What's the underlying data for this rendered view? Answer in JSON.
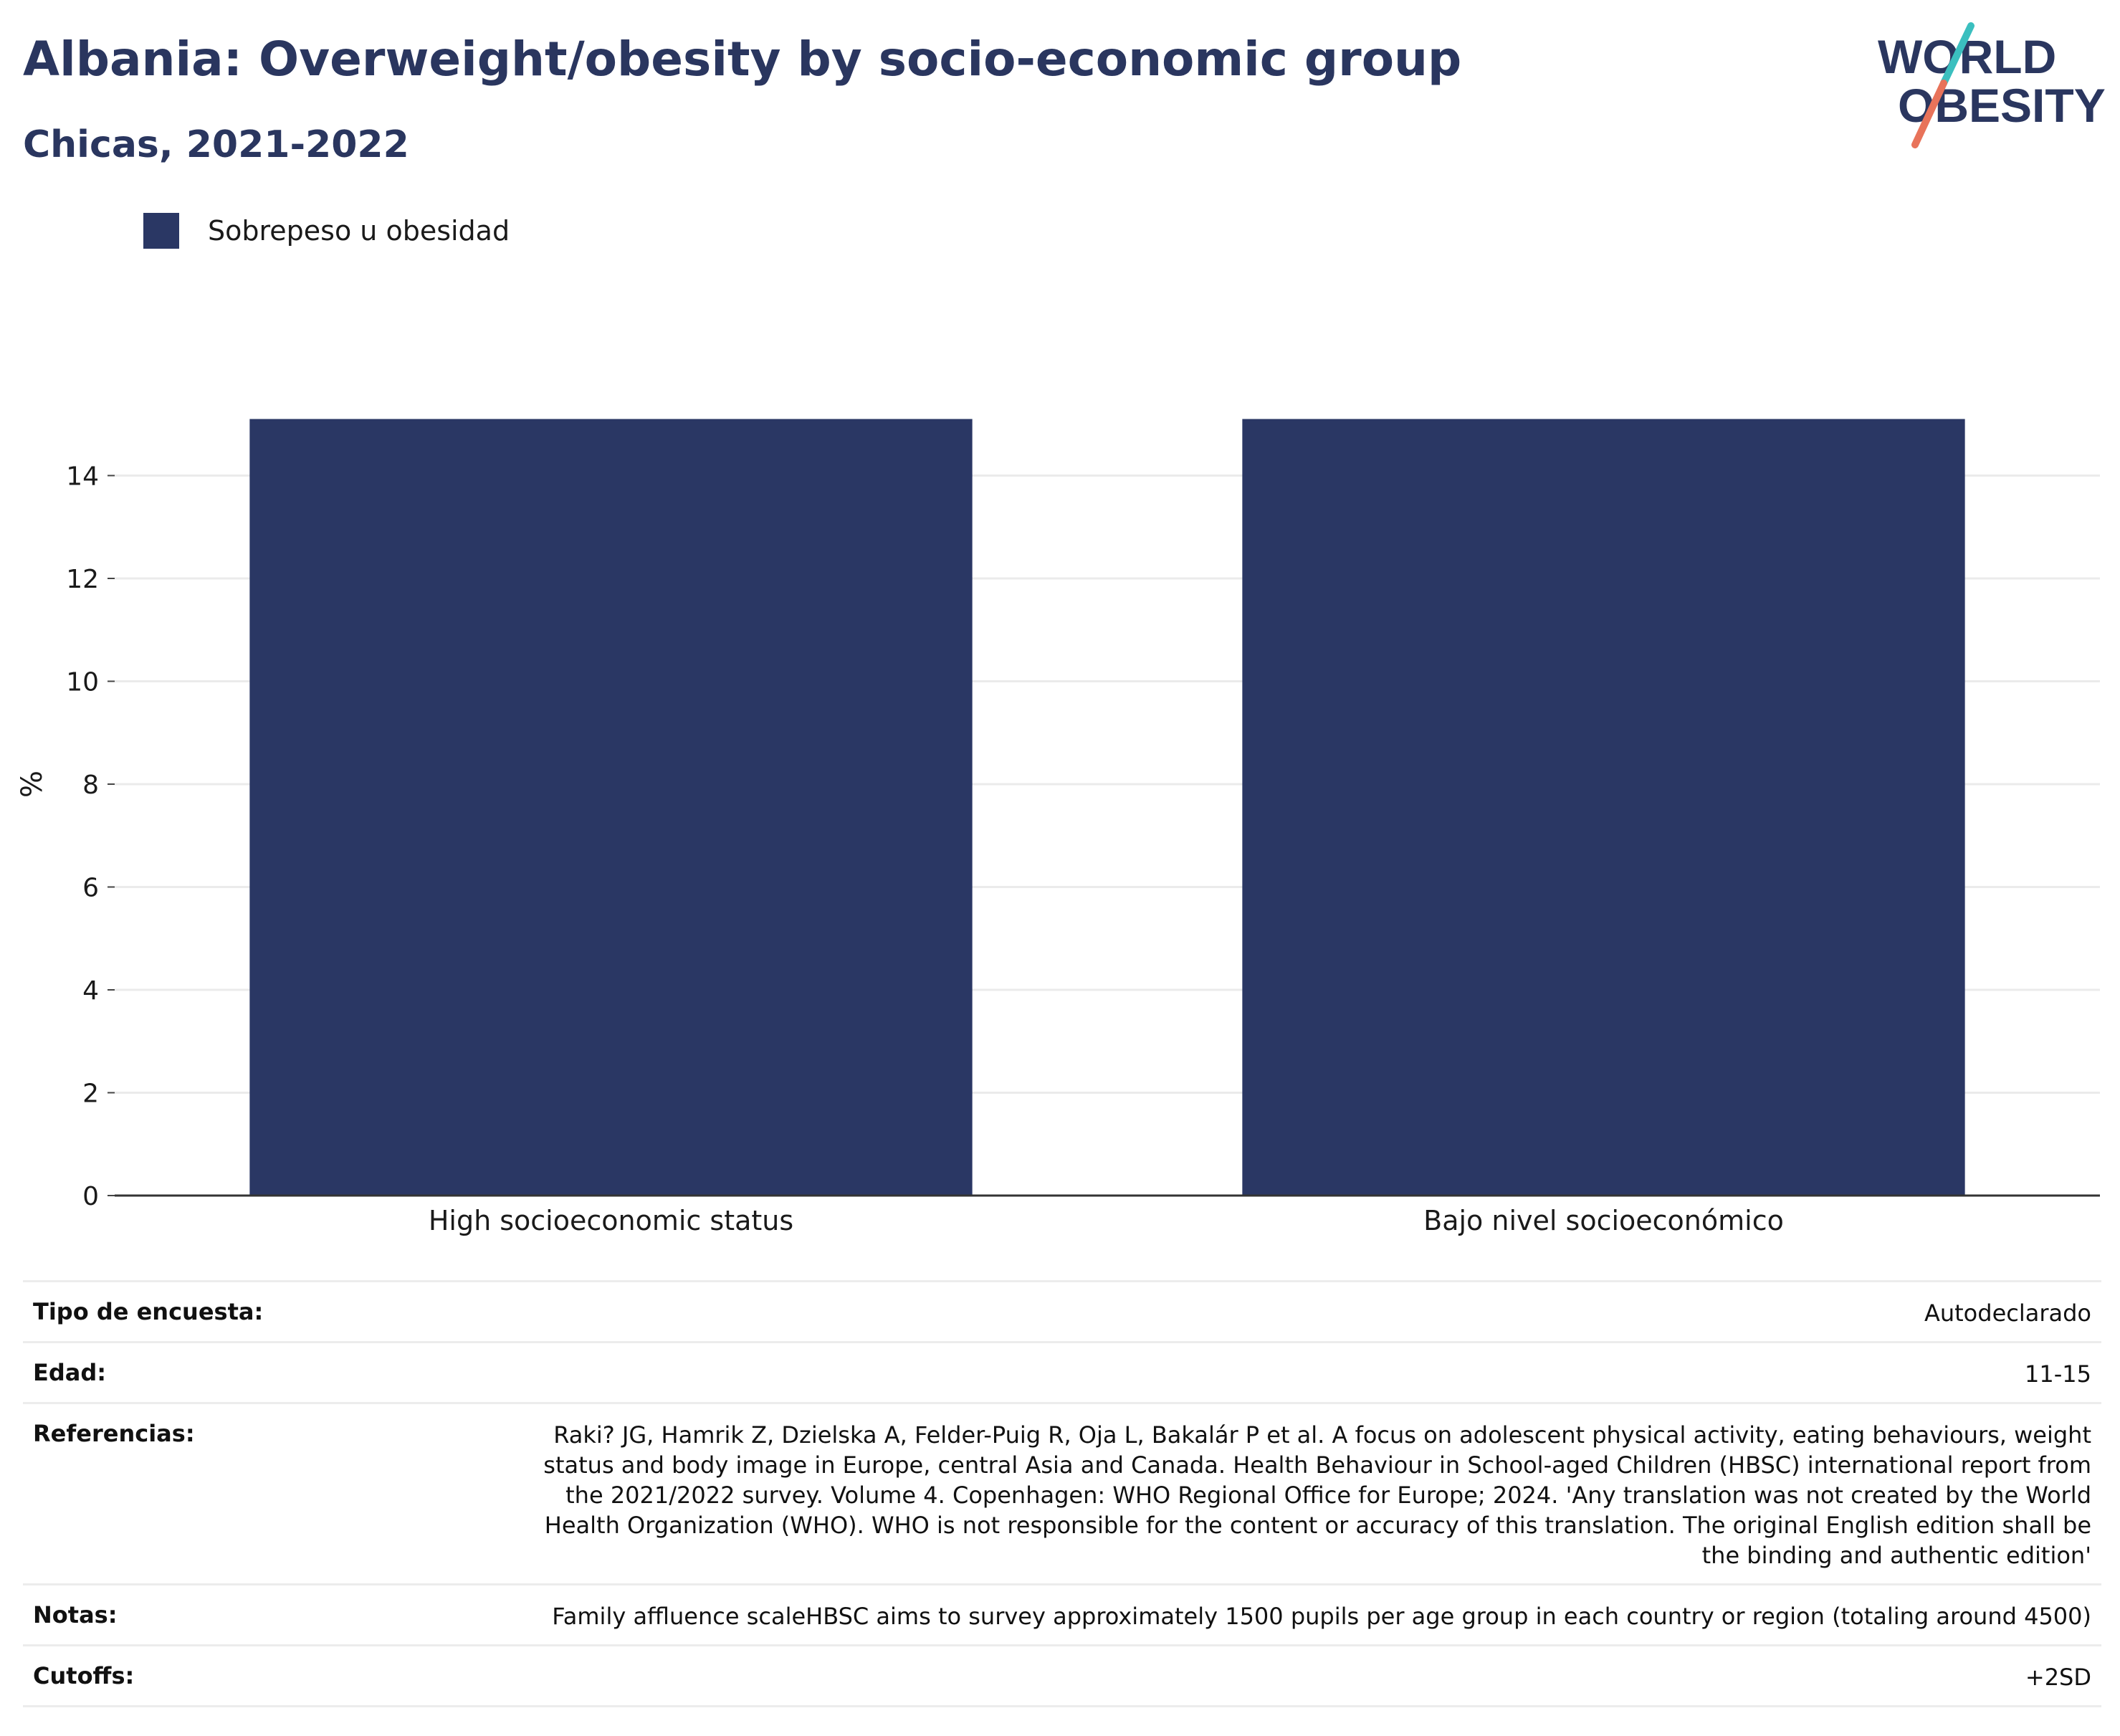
{
  "header": {
    "title": "Albania: Overweight/obesity by socio-economic group",
    "subtitle": "Chicas, 2021-2022"
  },
  "logo": {
    "line1": "WORLD",
    "line2": "OBESITY",
    "text_color": "#2a365f",
    "slash_colors": [
      "#3bbfbf",
      "#e8735a"
    ]
  },
  "legend": {
    "items": [
      {
        "label": "Sobrepeso u obesidad",
        "color": "#2a3764"
      }
    ]
  },
  "chart_data": {
    "type": "bar",
    "categories": [
      "High socioeconomic status",
      "Bajo nivel socioeconómico"
    ],
    "series": [
      {
        "name": "Sobrepeso u obesidad",
        "values": [
          15.1,
          15.1
        ],
        "color": "#2a3764"
      }
    ],
    "ylabel": "%",
    "xlabel": "",
    "ylim": [
      0,
      16
    ],
    "yticks": [
      0,
      2,
      4,
      6,
      8,
      10,
      12,
      14
    ],
    "grid": true
  },
  "meta": {
    "rows": [
      {
        "key": "Tipo de encuesta:",
        "value": "Autodeclarado"
      },
      {
        "key": "Edad:",
        "value": "11-15"
      },
      {
        "key": "Referencias:",
        "value": "Raki? JG, Hamrik Z, Dzielska A, Felder-Puig R, Oja L, Bakalár P et al. A focus on adolescent physical activity, eating behaviours, weight status and body image in Europe, central Asia and Canada. Health Behaviour in School-aged Children (HBSC) international report from the 2021/2022 survey. Volume 4. Copenhagen: WHO Regional Office for Europe; 2024. 'Any translation was not created by the World Health Organization (WHO). WHO is not responsible for the content or accuracy of this translation. The original English edition shall be the binding and authentic edition'"
      },
      {
        "key": "Notas:",
        "value": "Family affluence scaleHBSC aims to survey approximately 1500 pupils per age group in each country or region (totaling around 4500)"
      },
      {
        "key": "Cutoffs:",
        "value": "+2SD"
      }
    ]
  }
}
